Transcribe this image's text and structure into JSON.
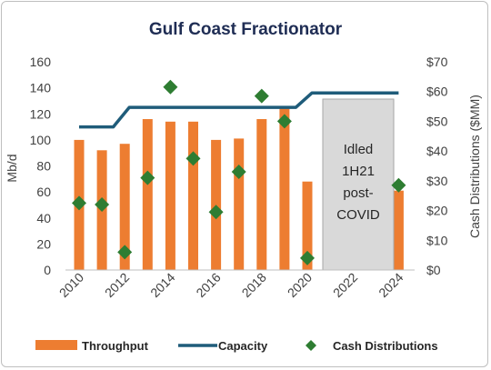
{
  "chart_data": {
    "type": "bar",
    "title": "Gulf Coast Fractionator",
    "ylabel": "Mb/d",
    "y2label": "Cash Distributions ($MM)",
    "ylim": [
      0,
      160
    ],
    "y2lim": [
      0,
      70
    ],
    "yticks": [
      "0",
      "20",
      "40",
      "60",
      "80",
      "100",
      "120",
      "140",
      "160"
    ],
    "y2ticks": [
      "$0",
      "$10",
      "$20",
      "$30",
      "$40",
      "$50",
      "$60",
      "$70"
    ],
    "x": [
      2010,
      2011,
      2012,
      2013,
      2014,
      2015,
      2016,
      2017,
      2018,
      2019,
      2020,
      2021,
      2022,
      2023,
      2024
    ],
    "xticks": [
      "2010",
      "2012",
      "2014",
      "2016",
      "2018",
      "2020",
      "2022",
      "2024"
    ],
    "series": [
      {
        "name": "Throughput",
        "kind": "bar",
        "color": "#ed7d31",
        "values": [
          100,
          92,
          97,
          116,
          114,
          114,
          100,
          101,
          116,
          125,
          68,
          null,
          null,
          null,
          61
        ]
      },
      {
        "name": "Capacity",
        "kind": "line",
        "color": "#1f5c7a",
        "values": [
          110,
          110,
          125,
          125,
          125,
          125,
          125,
          125,
          125,
          125,
          136,
          136,
          136,
          136,
          136
        ]
      },
      {
        "name": "Cash Distributions",
        "kind": "scatter",
        "axis": "right",
        "color": "#2e7d32",
        "values": [
          22.5,
          22,
          6,
          31,
          61.5,
          37.5,
          19.5,
          33,
          58.5,
          50,
          4,
          null,
          null,
          null,
          28.5
        ]
      }
    ],
    "annotation": {
      "lines": [
        "Idled",
        "1H21",
        "post-",
        "COVID"
      ],
      "range": [
        2021,
        2023
      ]
    },
    "legend_position": "bottom",
    "grid": false
  }
}
